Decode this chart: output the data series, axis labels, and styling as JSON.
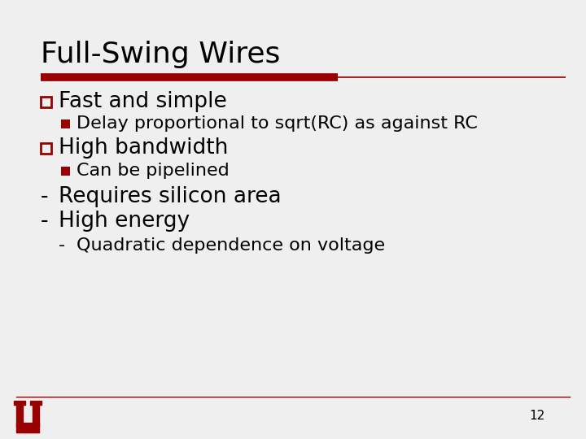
{
  "title": "Full-Swing Wires",
  "background_color": "#efefef",
  "title_color": "#000000",
  "title_fontsize": 26,
  "accent_color": "#990000",
  "bullet1_text": "Fast and simple",
  "sub1_text": "Delay proportional to sqrt(RC) as against RC",
  "bullet2_text": "High bandwidth",
  "sub2_text": "Can be pipelined",
  "dash1_text": "Requires silicon area",
  "dash2_text": "High energy",
  "sub3_text": "Quadratic dependence on voltage",
  "page_number": "12",
  "bullet_fontsize": 19,
  "sub_fontsize": 16,
  "dash_fontsize": 19
}
